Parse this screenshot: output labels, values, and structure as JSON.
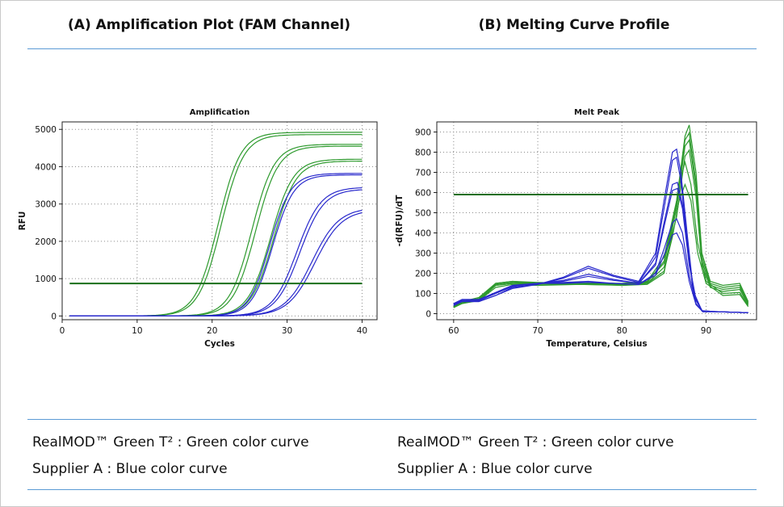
{
  "headers": {
    "left": "(A) Amplification Plot (FAM Channel)",
    "right": "(B) Melting Curve Profile"
  },
  "legend": {
    "left": [
      "RealMOD™ Green T² : Green color curve",
      "Supplier A : Blue color curve"
    ],
    "right": [
      "RealMOD™ Green T² : Green color curve",
      "Supplier A : Blue color curve"
    ]
  },
  "colors": {
    "green": "#2e9a2e",
    "blue": "#2828cc",
    "threshold": "#1a6e1a",
    "rule": "#5b9bd5"
  },
  "chart_data": [
    {
      "type": "line",
      "title": "Amplification",
      "xlabel": "Cycles",
      "ylabel": "RFU",
      "xlim": [
        0,
        42
      ],
      "ylim": [
        -100,
        5200
      ],
      "xticks": [
        0,
        10,
        20,
        30,
        40
      ],
      "yticks": [
        0,
        1000,
        2000,
        3000,
        4000,
        5000
      ],
      "grid": true,
      "threshold": 870,
      "series_model": "sigmoid",
      "x_range": [
        1,
        40
      ],
      "series": [
        {
          "group": "green",
          "max": 4920,
          "midpoint": 20.8,
          "slope": 1.5
        },
        {
          "group": "green",
          "max": 4860,
          "midpoint": 21.2,
          "slope": 1.5
        },
        {
          "group": "green",
          "max": 4600,
          "midpoint": 25.3,
          "slope": 1.5
        },
        {
          "group": "green",
          "max": 4550,
          "midpoint": 25.8,
          "slope": 1.5
        },
        {
          "group": "green",
          "max": 4200,
          "midpoint": 27.8,
          "slope": 1.5
        },
        {
          "group": "green",
          "max": 4150,
          "midpoint": 28.2,
          "slope": 1.5
        },
        {
          "group": "blue",
          "max": 3820,
          "midpoint": 27.7,
          "slope": 1.4
        },
        {
          "group": "blue",
          "max": 3780,
          "midpoint": 28.1,
          "slope": 1.4
        },
        {
          "group": "blue",
          "max": 3450,
          "midpoint": 31.3,
          "slope": 1.6
        },
        {
          "group": "blue",
          "max": 3400,
          "midpoint": 31.7,
          "slope": 1.6
        },
        {
          "group": "blue",
          "max": 2900,
          "midpoint": 33.3,
          "slope": 1.8
        },
        {
          "group": "blue",
          "max": 2850,
          "midpoint": 33.7,
          "slope": 1.8
        }
      ]
    },
    {
      "type": "line",
      "title": "Melt Peak",
      "xlabel": "Temperature, Celsius",
      "ylabel": "-d(RFU)/dT",
      "xlim": [
        58,
        96
      ],
      "ylim": [
        -30,
        950
      ],
      "xticks": [
        60,
        70,
        80,
        90
      ],
      "yticks": [
        0,
        100,
        200,
        300,
        400,
        500,
        600,
        700,
        800,
        900
      ],
      "grid": true,
      "threshold": 590,
      "x_range": [
        60,
        95
      ],
      "series": [
        {
          "group": "green",
          "points": [
            [
              60,
              30
            ],
            [
              61,
              60
            ],
            [
              63,
              80
            ],
            [
              65,
              150
            ],
            [
              67,
              160
            ],
            [
              70,
              150
            ],
            [
              75,
              155
            ],
            [
              80,
              150
            ],
            [
              83,
              160
            ],
            [
              85,
              280
            ],
            [
              86.5,
              560
            ],
            [
              87.5,
              880
            ],
            [
              88,
              935
            ],
            [
              88.8,
              700
            ],
            [
              89.5,
              300
            ],
            [
              90.5,
              160
            ],
            [
              92,
              140
            ],
            [
              94,
              150
            ],
            [
              95,
              60
            ]
          ]
        },
        {
          "group": "green",
          "points": [
            [
              60,
              40
            ],
            [
              61,
              55
            ],
            [
              63,
              70
            ],
            [
              65,
              140
            ],
            [
              67,
              150
            ],
            [
              70,
              145
            ],
            [
              75,
              150
            ],
            [
              80,
              145
            ],
            [
              83,
              155
            ],
            [
              85,
              260
            ],
            [
              86.5,
              540
            ],
            [
              87.5,
              860
            ],
            [
              88,
              895
            ],
            [
              88.8,
              650
            ],
            [
              89.5,
              280
            ],
            [
              90.5,
              150
            ],
            [
              92,
              130
            ],
            [
              94,
              140
            ],
            [
              95,
              55
            ]
          ]
        },
        {
          "group": "green",
          "points": [
            [
              60,
              35
            ],
            [
              61,
              60
            ],
            [
              63,
              75
            ],
            [
              65,
              145
            ],
            [
              67,
              155
            ],
            [
              70,
              150
            ],
            [
              75,
              152
            ],
            [
              80,
              148
            ],
            [
              83,
              158
            ],
            [
              85,
              250
            ],
            [
              86.5,
              520
            ],
            [
              87.5,
              830
            ],
            [
              88,
              860
            ],
            [
              88.8,
              620
            ],
            [
              89.5,
              260
            ],
            [
              90.5,
              140
            ],
            [
              92,
              120
            ],
            [
              94,
              130
            ],
            [
              95,
              50
            ]
          ]
        },
        {
          "group": "green",
          "points": [
            [
              60,
              30
            ],
            [
              61,
              55
            ],
            [
              63,
              65
            ],
            [
              65,
              130
            ],
            [
              67,
              145
            ],
            [
              70,
              140
            ],
            [
              75,
              145
            ],
            [
              80,
              142
            ],
            [
              83,
              150
            ],
            [
              85,
              230
            ],
            [
              86.5,
              480
            ],
            [
              87.5,
              780
            ],
            [
              88,
              810
            ],
            [
              88.8,
              580
            ],
            [
              89.5,
              240
            ],
            [
              90.5,
              130
            ],
            [
              92,
              110
            ],
            [
              94,
              120
            ],
            [
              95,
              45
            ]
          ]
        },
        {
          "group": "green",
          "points": [
            [
              60,
              30
            ],
            [
              61,
              50
            ],
            [
              63,
              70
            ],
            [
              65,
              150
            ],
            [
              67,
              160
            ],
            [
              70,
              155
            ],
            [
              75,
              150
            ],
            [
              80,
              140
            ],
            [
              83,
              145
            ],
            [
              85,
              200
            ],
            [
              86,
              420
            ],
            [
              86.8,
              640
            ],
            [
              87.5,
              750
            ],
            [
              88.2,
              640
            ],
            [
              89,
              350
            ],
            [
              90,
              160
            ],
            [
              92,
              100
            ],
            [
              94,
              105
            ],
            [
              95,
              40
            ]
          ]
        },
        {
          "group": "green",
          "points": [
            [
              60,
              30
            ],
            [
              61,
              50
            ],
            [
              63,
              65
            ],
            [
              65,
              140
            ],
            [
              67,
              150
            ],
            [
              70,
              148
            ],
            [
              75,
              145
            ],
            [
              80,
              140
            ],
            [
              83,
              150
            ],
            [
              85,
              210
            ],
            [
              86,
              380
            ],
            [
              86.8,
              560
            ],
            [
              87.5,
              640
            ],
            [
              88.2,
              560
            ],
            [
              89,
              300
            ],
            [
              90,
              150
            ],
            [
              92,
              90
            ],
            [
              94,
              95
            ],
            [
              95,
              35
            ]
          ]
        },
        {
          "group": "blue",
          "points": [
            [
              60,
              40
            ],
            [
              61,
              60
            ],
            [
              63,
              60
            ],
            [
              65,
              90
            ],
            [
              67,
              130
            ],
            [
              70,
              145
            ],
            [
              73,
              180
            ],
            [
              76,
              235
            ],
            [
              79,
              190
            ],
            [
              82,
              160
            ],
            [
              84,
              300
            ],
            [
              85,
              560
            ],
            [
              86,
              800
            ],
            [
              86.5,
              815
            ],
            [
              87,
              700
            ],
            [
              87.8,
              380
            ],
            [
              88.5,
              110
            ],
            [
              89.5,
              15
            ],
            [
              91,
              10
            ],
            [
              95,
              5
            ]
          ]
        },
        {
          "group": "blue",
          "points": [
            [
              60,
              40
            ],
            [
              61,
              60
            ],
            [
              63,
              60
            ],
            [
              65,
              90
            ],
            [
              67,
              125
            ],
            [
              70,
              145
            ],
            [
              73,
              175
            ],
            [
              76,
              225
            ],
            [
              79,
              185
            ],
            [
              82,
              155
            ],
            [
              84,
              280
            ],
            [
              85,
              520
            ],
            [
              86,
              760
            ],
            [
              86.5,
              775
            ],
            [
              87,
              660
            ],
            [
              87.8,
              350
            ],
            [
              88.5,
              100
            ],
            [
              89.5,
              15
            ],
            [
              91,
              10
            ],
            [
              95,
              5
            ]
          ]
        },
        {
          "group": "blue",
          "points": [
            [
              60,
              45
            ],
            [
              61,
              65
            ],
            [
              63,
              65
            ],
            [
              65,
              100
            ],
            [
              67,
              135
            ],
            [
              70,
              150
            ],
            [
              73,
              165
            ],
            [
              76,
              195
            ],
            [
              79,
              170
            ],
            [
              82,
              150
            ],
            [
              84,
              250
            ],
            [
              85,
              450
            ],
            [
              86,
              640
            ],
            [
              86.6,
              650
            ],
            [
              87.2,
              540
            ],
            [
              88,
              250
            ],
            [
              88.8,
              70
            ],
            [
              89.6,
              10
            ],
            [
              91,
              10
            ],
            [
              95,
              5
            ]
          ]
        },
        {
          "group": "blue",
          "points": [
            [
              60,
              45
            ],
            [
              61,
              65
            ],
            [
              63,
              65
            ],
            [
              65,
              100
            ],
            [
              67,
              135
            ],
            [
              70,
              150
            ],
            [
              73,
              160
            ],
            [
              76,
              185
            ],
            [
              79,
              165
            ],
            [
              82,
              150
            ],
            [
              84,
              240
            ],
            [
              85,
              430
            ],
            [
              86,
              610
            ],
            [
              86.6,
              620
            ],
            [
              87.2,
              520
            ],
            [
              88,
              240
            ],
            [
              88.8,
              65
            ],
            [
              89.6,
              10
            ],
            [
              91,
              10
            ],
            [
              95,
              5
            ]
          ]
        },
        {
          "group": "blue",
          "points": [
            [
              60,
              50
            ],
            [
              61,
              70
            ],
            [
              63,
              70
            ],
            [
              65,
              105
            ],
            [
              67,
              140
            ],
            [
              70,
              150
            ],
            [
              73,
              155
            ],
            [
              76,
              160
            ],
            [
              79,
              150
            ],
            [
              82,
              145
            ],
            [
              84,
              200
            ],
            [
              85,
              320
            ],
            [
              86,
              450
            ],
            [
              86.5,
              470
            ],
            [
              87.2,
              400
            ],
            [
              88,
              190
            ],
            [
              88.8,
              50
            ],
            [
              89.6,
              10
            ],
            [
              91,
              10
            ],
            [
              95,
              5
            ]
          ]
        },
        {
          "group": "blue",
          "points": [
            [
              60,
              50
            ],
            [
              61,
              70
            ],
            [
              63,
              70
            ],
            [
              65,
              105
            ],
            [
              67,
              140
            ],
            [
              70,
              150
            ],
            [
              73,
              150
            ],
            [
              76,
              155
            ],
            [
              79,
              150
            ],
            [
              82,
              145
            ],
            [
              84,
              190
            ],
            [
              85,
              290
            ],
            [
              86,
              390
            ],
            [
              86.5,
              400
            ],
            [
              87.2,
              340
            ],
            [
              88,
              160
            ],
            [
              88.8,
              45
            ],
            [
              89.6,
              10
            ],
            [
              91,
              10
            ],
            [
              95,
              5
            ]
          ]
        }
      ]
    }
  ]
}
